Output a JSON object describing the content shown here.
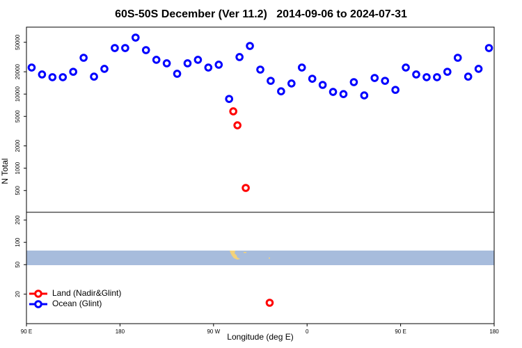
{
  "chart_data": {
    "type": "scatter",
    "title": "60S-50S December (Ver 11.2)   2014-09-06 to 2024-07-31",
    "x_label": "Longitude (deg E)",
    "y_label": "N Total",
    "log_y": true,
    "legend": "bottom-left",
    "xlim": [
      90,
      540
    ],
    "ylim": [
      8,
      80000
    ],
    "xticks": [
      {
        "value": 90,
        "label": "90 E"
      },
      180,
      {
        "value": 270,
        "label": "90 W"
      },
      {
        "value": 360,
        "label": "0"
      },
      {
        "value": 450,
        "label": "90 E"
      },
      {
        "value": 540,
        "label": "180"
      }
    ],
    "yticks": [
      20,
      50,
      100,
      200,
      500,
      1000,
      2000,
      5000,
      10000,
      20000,
      50000
    ],
    "series": [
      {
        "name": "Land (Nadir&Glint)",
        "color": "#ff0000",
        "x": [
          289,
          293,
          301,
          324
        ],
        "values": [
          5850,
          3790,
          542,
          15.3
        ]
      },
      {
        "name": "Ocean (Glint)",
        "color": "#0000ff",
        "x": [
          95,
          105,
          115,
          125,
          135,
          145,
          155,
          165,
          175,
          185,
          195,
          205,
          215,
          225,
          235,
          245,
          255,
          265,
          275,
          285,
          295,
          305,
          315,
          325,
          335,
          345,
          355,
          365,
          375,
          385,
          395,
          405,
          415,
          425,
          435,
          445,
          455,
          465,
          475,
          485,
          495,
          505,
          515,
          525,
          535
        ],
        "values": [
          22800,
          18400,
          16900,
          16900,
          20000,
          30900,
          17200,
          21900,
          41800,
          41800,
          57800,
          39200,
          29000,
          26000,
          18800,
          26000,
          29000,
          22800,
          24900,
          8600,
          31600,
          44600,
          21400,
          15100,
          10900,
          13900,
          22800,
          16100,
          13300,
          10700,
          10000,
          14500,
          9600,
          16500,
          15100,
          11400,
          22800,
          18400,
          16900,
          16900,
          20000,
          30900,
          17200,
          21900,
          41800
        ]
      }
    ]
  }
}
